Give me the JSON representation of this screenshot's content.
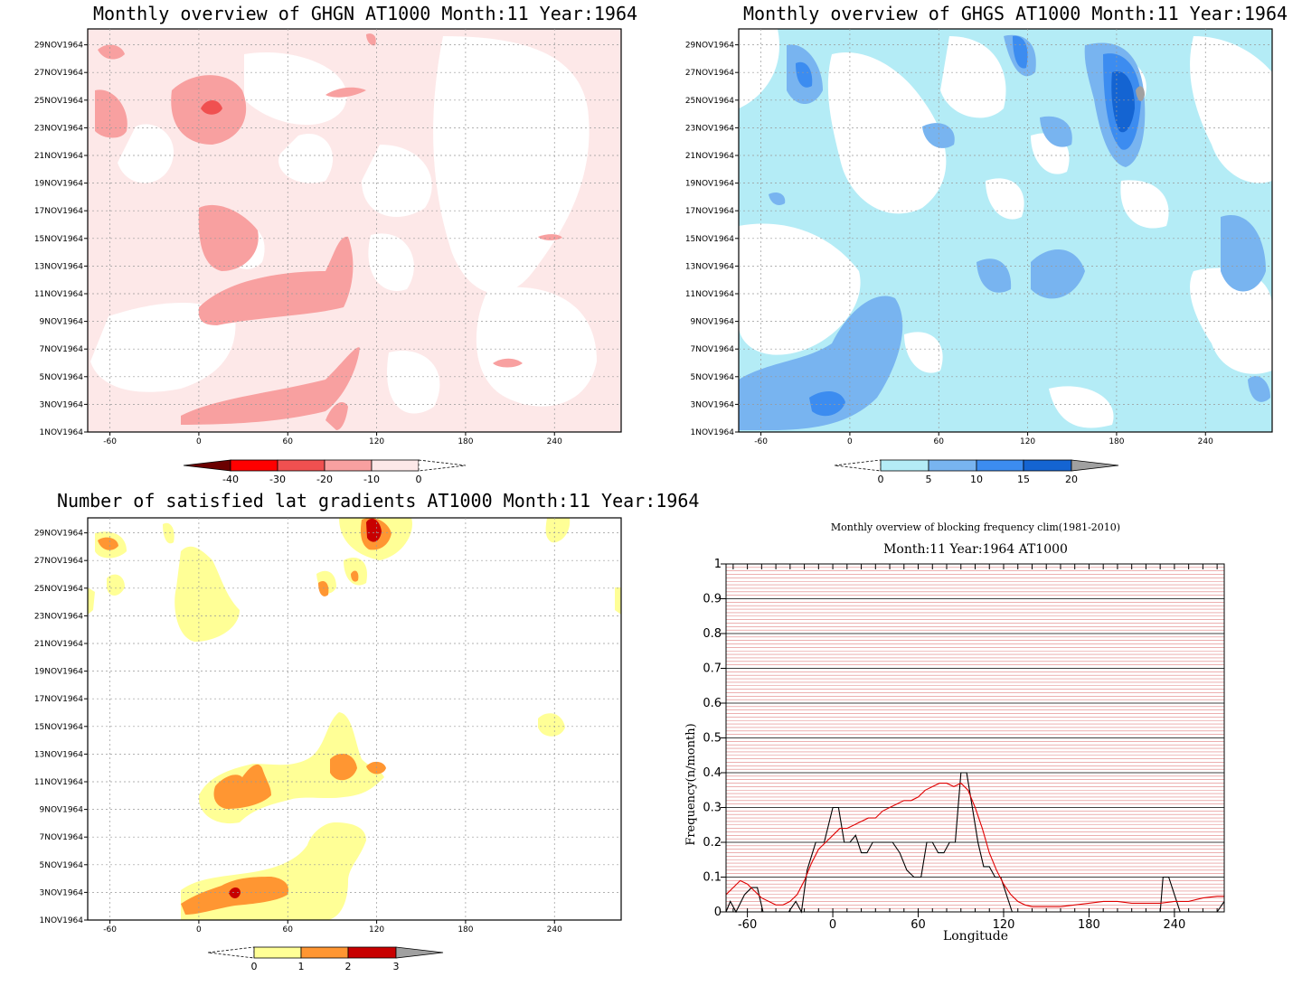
{
  "panels": {
    "ghgn": {
      "title": "Monthly overview of GHGN AT1000 Month:11 Year:1964",
      "colorbar_labels": [
        "-40",
        "-30",
        "-20",
        "-10",
        "0"
      ]
    },
    "ghgs": {
      "title": "Monthly overview of GHGS AT1000 Month:11 Year:1964",
      "colorbar_labels": [
        "0",
        "5",
        "10",
        "15",
        "20"
      ]
    },
    "latgrad": {
      "title": "Number of satisfied lat gradients AT1000 Month:11 Year:1964",
      "colorbar_labels": [
        "0",
        "1",
        "2",
        "3"
      ]
    },
    "blocking": {
      "title": "Monthly overview of blocking frequency clim(1981-2010)",
      "subtitle": "Month:11 Year:1964  AT1000",
      "xlabel": "Longitude",
      "ylabel": "Frequency(n/month)"
    }
  },
  "date_ticks": [
    "1NOV1964",
    "3NOV1964",
    "5NOV1964",
    "7NOV1964",
    "9NOV1964",
    "11NOV1964",
    "13NOV1964",
    "15NOV1964",
    "17NOV1964",
    "19NOV1964",
    "21NOV1964",
    "23NOV1964",
    "25NOV1964",
    "27NOV1964",
    "29NOV1964"
  ],
  "lon_ticks": [
    "-60",
    "0",
    "60",
    "120",
    "180",
    "240"
  ],
  "colors": {
    "ghgn": [
      "#6b0000",
      "#ff0000",
      "#f05050",
      "#f8a0a0",
      "#fde8e8"
    ],
    "ghgs": [
      "#b4ecf6",
      "#78b4f0",
      "#3c8cf0",
      "#1464d2",
      "#a0a0a0"
    ],
    "latgrad": [
      "#ffff96",
      "#ff9632",
      "#c80000",
      "#a0a0a0"
    ],
    "blocking_daily": "#000000",
    "blocking_clim": "#e00000"
  },
  "chart_data": [
    {
      "type": "heatmap",
      "title": "Monthly overview of GHGN AT1000 Month:11 Year:1964",
      "x_ticks": [
        "-60",
        "0",
        "60",
        "120",
        "180",
        "240"
      ],
      "y_ticks": [
        "1NOV1964",
        "3NOV1964",
        "5NOV1964",
        "7NOV1964",
        "9NOV1964",
        "11NOV1964",
        "13NOV1964",
        "15NOV1964",
        "17NOV1964",
        "19NOV1964",
        "21NOV1964",
        "23NOV1964",
        "25NOV1964",
        "27NOV1964",
        "29NOV1964"
      ],
      "levels": [
        -40,
        -30,
        -20,
        -10,
        0
      ]
    },
    {
      "type": "heatmap",
      "title": "Monthly overview of GHGS AT1000 Month:11 Year:1964",
      "x_ticks": [
        "-60",
        "0",
        "60",
        "120",
        "180",
        "240"
      ],
      "y_ticks": [
        "1NOV1964",
        "3NOV1964",
        "5NOV1964",
        "7NOV1964",
        "9NOV1964",
        "11NOV1964",
        "13NOV1964",
        "15NOV1964",
        "17NOV1964",
        "19NOV1964",
        "21NOV1964",
        "23NOV1964",
        "25NOV1964",
        "27NOV1964",
        "29NOV1964"
      ],
      "levels": [
        0,
        5,
        10,
        15,
        20
      ]
    },
    {
      "type": "heatmap",
      "title": "Number of satisfied lat gradients AT1000 Month:11 Year:1964",
      "x_ticks": [
        "-60",
        "0",
        "60",
        "120",
        "180",
        "240"
      ],
      "y_ticks": [
        "1NOV1964",
        "3NOV1964",
        "5NOV1964",
        "7NOV1964",
        "9NOV1964",
        "11NOV1964",
        "13NOV1964",
        "15NOV1964",
        "17NOV1964",
        "19NOV1964",
        "21NOV1964",
        "23NOV1964",
        "25NOV1964",
        "27NOV1964",
        "29NOV1964"
      ],
      "levels": [
        0,
        1,
        2,
        3
      ]
    },
    {
      "type": "line",
      "title": "Monthly overview of blocking frequency clim(1981-2010)",
      "subtitle": "Month:11 Year:1964  AT1000",
      "xlabel": "Longitude",
      "ylabel": "Frequency(n/month)",
      "xlim": [
        -75,
        275
      ],
      "ylim": [
        0,
        1
      ],
      "x_ticks": [
        -60,
        0,
        60,
        120,
        180,
        240
      ],
      "y_ticks": [
        0,
        0.1,
        0.2,
        0.3,
        0.4,
        0.5,
        0.6,
        0.7,
        0.8,
        0.9,
        1
      ],
      "series": [
        {
          "x": [
            -75,
            -72,
            -68,
            -62,
            -57,
            -53,
            -49,
            -45,
            -38,
            -31,
            -26,
            -22,
            -18,
            -12,
            -6,
            0,
            4,
            8,
            12,
            16,
            20,
            24,
            28,
            32,
            37,
            42,
            47,
            52,
            57,
            62,
            66,
            70,
            74,
            78,
            82,
            86,
            90,
            94,
            98,
            102,
            106,
            110,
            114,
            118,
            122,
            126,
            130,
            140,
            170,
            200,
            230,
            232,
            236,
            240,
            244,
            250,
            255,
            260,
            266,
            270,
            275
          ],
          "y": [
            0.0,
            0.03,
            0.0,
            0.05,
            0.07,
            0.07,
            0.0,
            0.0,
            0.0,
            0.0,
            0.03,
            0.0,
            0.12,
            0.2,
            0.2,
            0.3,
            0.3,
            0.2,
            0.2,
            0.22,
            0.17,
            0.17,
            0.2,
            0.2,
            0.2,
            0.2,
            0.17,
            0.12,
            0.1,
            0.1,
            0.2,
            0.2,
            0.17,
            0.17,
            0.2,
            0.2,
            0.4,
            0.4,
            0.3,
            0.2,
            0.13,
            0.13,
            0.1,
            0.1,
            0.05,
            0.0,
            0.0,
            0.0,
            0.0,
            0.0,
            0.0,
            0.1,
            0.1,
            0.05,
            0.0,
            0.0,
            0.0,
            0.0,
            0.0,
            0.0,
            0.03
          ]
        },
        {
          "x": [
            -75,
            -70,
            -65,
            -60,
            -55,
            -50,
            -45,
            -40,
            -35,
            -30,
            -25,
            -20,
            -15,
            -10,
            -5,
            0,
            5,
            10,
            15,
            20,
            25,
            30,
            35,
            40,
            45,
            50,
            55,
            60,
            65,
            70,
            75,
            80,
            85,
            90,
            95,
            100,
            105,
            110,
            115,
            120,
            125,
            130,
            135,
            140,
            150,
            160,
            170,
            180,
            190,
            200,
            210,
            220,
            230,
            240,
            250,
            260,
            270,
            275
          ],
          "y": [
            0.05,
            0.07,
            0.09,
            0.08,
            0.06,
            0.04,
            0.03,
            0.02,
            0.02,
            0.03,
            0.05,
            0.09,
            0.14,
            0.18,
            0.2,
            0.22,
            0.24,
            0.24,
            0.25,
            0.26,
            0.27,
            0.27,
            0.29,
            0.3,
            0.31,
            0.32,
            0.32,
            0.33,
            0.35,
            0.36,
            0.37,
            0.37,
            0.36,
            0.37,
            0.35,
            0.3,
            0.24,
            0.17,
            0.12,
            0.08,
            0.05,
            0.03,
            0.02,
            0.015,
            0.015,
            0.015,
            0.02,
            0.025,
            0.03,
            0.03,
            0.025,
            0.025,
            0.025,
            0.03,
            0.03,
            0.04,
            0.045,
            0.045
          ]
        }
      ]
    }
  ]
}
